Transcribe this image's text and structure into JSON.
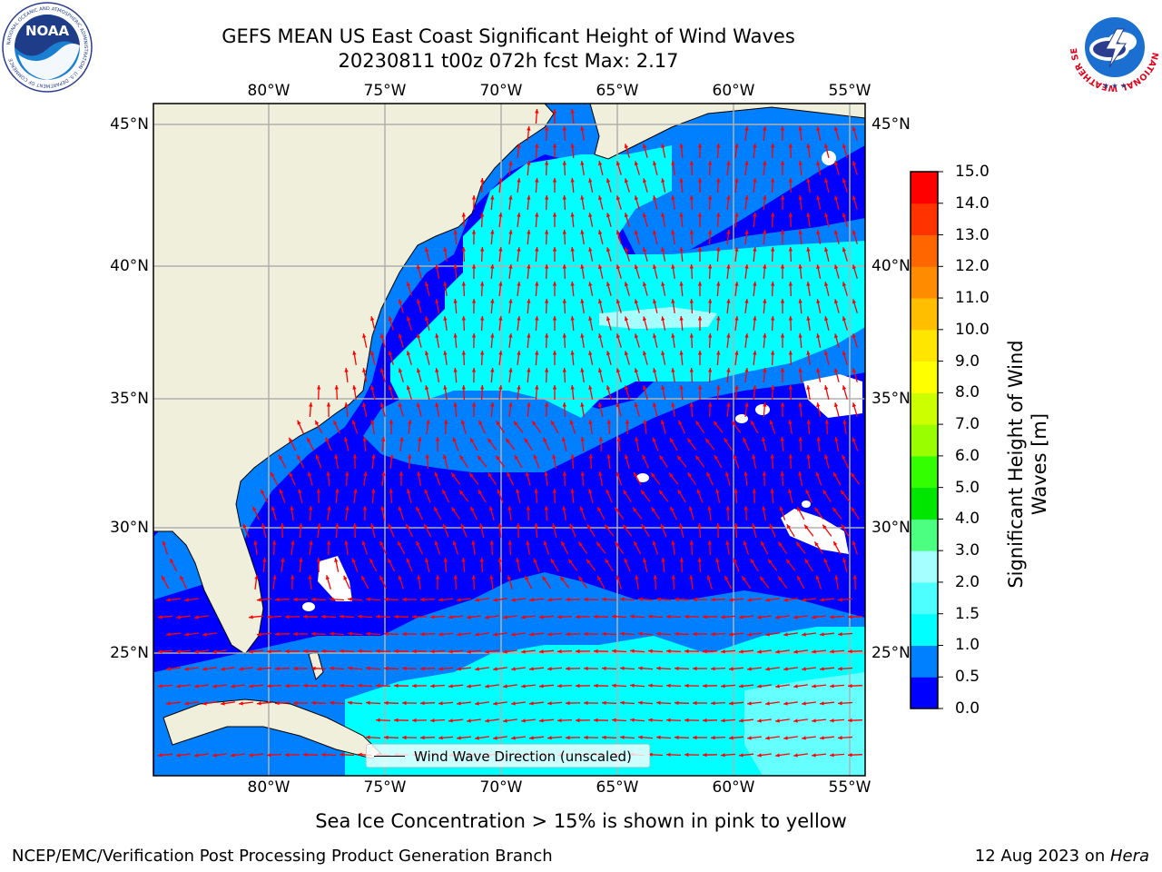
{
  "title": {
    "line1": "GEFS MEAN US East Coast Significant Height of Wind Waves",
    "line2": "20230811 t00z 072h fcst   Max: 2.17"
  },
  "map": {
    "lon_ticks_top": [
      "80°W",
      "75°W",
      "70°W",
      "65°W",
      "60°W",
      "55°W"
    ],
    "lon_ticks_bottom": [
      "80°W",
      "75°W",
      "70°W",
      "65°W",
      "60°W",
      "55°W"
    ],
    "lat_ticks_left": [
      "45°N",
      "40°N",
      "35°N",
      "30°N",
      "25°N"
    ],
    "lat_ticks_right": [
      "45°N",
      "40°N",
      "35°N",
      "30°N",
      "25°N"
    ],
    "colors": {
      "land": "#efefdb",
      "grid": "#b0b0b0",
      "arrow": "#ff0000",
      "band_0_0p5": "#0000ff",
      "band_0p5_1": "#0080ff",
      "band_1_1p5": "#00ffff",
      "band_1p5_2": "#66ffff",
      "band_2_2p5": "#a6ffff"
    }
  },
  "legend": {
    "label": "Wind Wave Direction (unscaled)"
  },
  "colorbar": {
    "label_line1": "Significant Height of Wind",
    "label_line2": "Waves [m]",
    "ticks": [
      "0.0",
      "0.5",
      "1.0",
      "1.5",
      "2.0",
      "3.0",
      "4.0",
      "5.0",
      "6.0",
      "7.0",
      "8.0",
      "9.0",
      "10.0",
      "11.0",
      "12.0",
      "13.0",
      "14.0",
      "15.0"
    ],
    "colors": [
      "#0000ff",
      "#0080ff",
      "#00ffff",
      "#4dffff",
      "#a6ffff",
      "#4dff80",
      "#00e600",
      "#33ff00",
      "#99ff00",
      "#ccff00",
      "#ffff00",
      "#ffe600",
      "#ffbf00",
      "#ff8c00",
      "#ff6600",
      "#ff3300",
      "#ff0000"
    ]
  },
  "notes": {
    "ice": "Sea Ice Concentration > 15% is shown in pink to yellow",
    "footer_left": "NCEP/EMC/Verification Post Processing Product Generation Branch",
    "footer_right_date": "12 Aug 2023 on ",
    "footer_right_host": "Hera"
  },
  "logos": {
    "noaa": "NOAA",
    "noaa_ring": "NATIONAL OCEANIC AND ATMOSPHERIC ADMINISTRATION · U.S. DEPARTMENT OF COMMERCE",
    "nws_ring": "NATIONAL WEATHER SERVICE"
  }
}
